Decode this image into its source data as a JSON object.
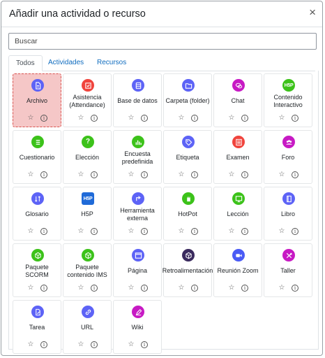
{
  "dialog": {
    "title": "Añadir una actividad o recurso",
    "close_symbol": "×"
  },
  "search": {
    "placeholder": "Buscar",
    "value": ""
  },
  "tabs": [
    {
      "label": "Todos",
      "active": true
    },
    {
      "label": "Actividades",
      "active": false
    },
    {
      "label": "Recursos",
      "active": false
    }
  ],
  "action_symbols": {
    "star": "☆",
    "info": "i"
  },
  "modules": [
    {
      "name": "Archivo",
      "icon": "file-icon",
      "color": "#5d63f6",
      "selected": true
    },
    {
      "name": "Asistencia (Attendance)",
      "icon": "attendance-icon",
      "color": "#f0443d"
    },
    {
      "name": "Base de datos",
      "icon": "database-icon",
      "color": "#5d63f6"
    },
    {
      "name": "Carpeta (folder)",
      "icon": "folder-icon",
      "color": "#5d63f6"
    },
    {
      "name": "Chat",
      "icon": "chat-icon",
      "color": "#c71ac4"
    },
    {
      "name": "Contenido Interactivo",
      "icon": "h5p-icon",
      "color": "#3cc21a",
      "glyph": "H5P"
    },
    {
      "name": "Cuestionario",
      "icon": "quiz-icon",
      "color": "#3cc21a"
    },
    {
      "name": "Elección",
      "icon": "choice-icon",
      "color": "#3cc21a",
      "glyph": "?"
    },
    {
      "name": "Encuesta predefinida",
      "icon": "survey-icon",
      "color": "#3cc21a"
    },
    {
      "name": "Etiqueta",
      "icon": "tag-icon",
      "color": "#5d63f6"
    },
    {
      "name": "Examen",
      "icon": "exam-icon",
      "color": "#f0443d"
    },
    {
      "name": "Foro",
      "icon": "forum-icon",
      "color": "#c71ac4"
    },
    {
      "name": "Glosario",
      "icon": "glossary-icon",
      "color": "#5d63f6"
    },
    {
      "name": "H5P",
      "icon": "h5p-logo-icon",
      "color": "#1f6ad8",
      "glyph": "H5P"
    },
    {
      "name": "Herramienta externa",
      "icon": "external-tool-icon",
      "color": "#5d63f6"
    },
    {
      "name": "HotPot",
      "icon": "hotpot-icon",
      "color": "#3cc21a"
    },
    {
      "name": "Lección",
      "icon": "lesson-icon",
      "color": "#3cc21a"
    },
    {
      "name": "Libro",
      "icon": "book-icon",
      "color": "#5d63f6"
    },
    {
      "name": "Paquete SCORM",
      "icon": "scorm-icon",
      "color": "#3cc21a"
    },
    {
      "name": "Paquete contenido IMS",
      "icon": "ims-icon",
      "color": "#3cc21a"
    },
    {
      "name": "Página",
      "icon": "page-icon",
      "color": "#5d63f6"
    },
    {
      "name": "Retroalimentación",
      "icon": "feedback-icon",
      "color": "#3a2a5e"
    },
    {
      "name": "Reunión Zoom",
      "icon": "zoom-icon",
      "color": "#4a5bf5"
    },
    {
      "name": "Taller",
      "icon": "workshop-icon",
      "color": "#c71ac4"
    },
    {
      "name": "Tarea",
      "icon": "assignment-icon",
      "color": "#5d63f6"
    },
    {
      "name": "URL",
      "icon": "url-icon",
      "color": "#5d63f6"
    },
    {
      "name": "Wiki",
      "icon": "wiki-icon",
      "color": "#c71ac4"
    }
  ]
}
